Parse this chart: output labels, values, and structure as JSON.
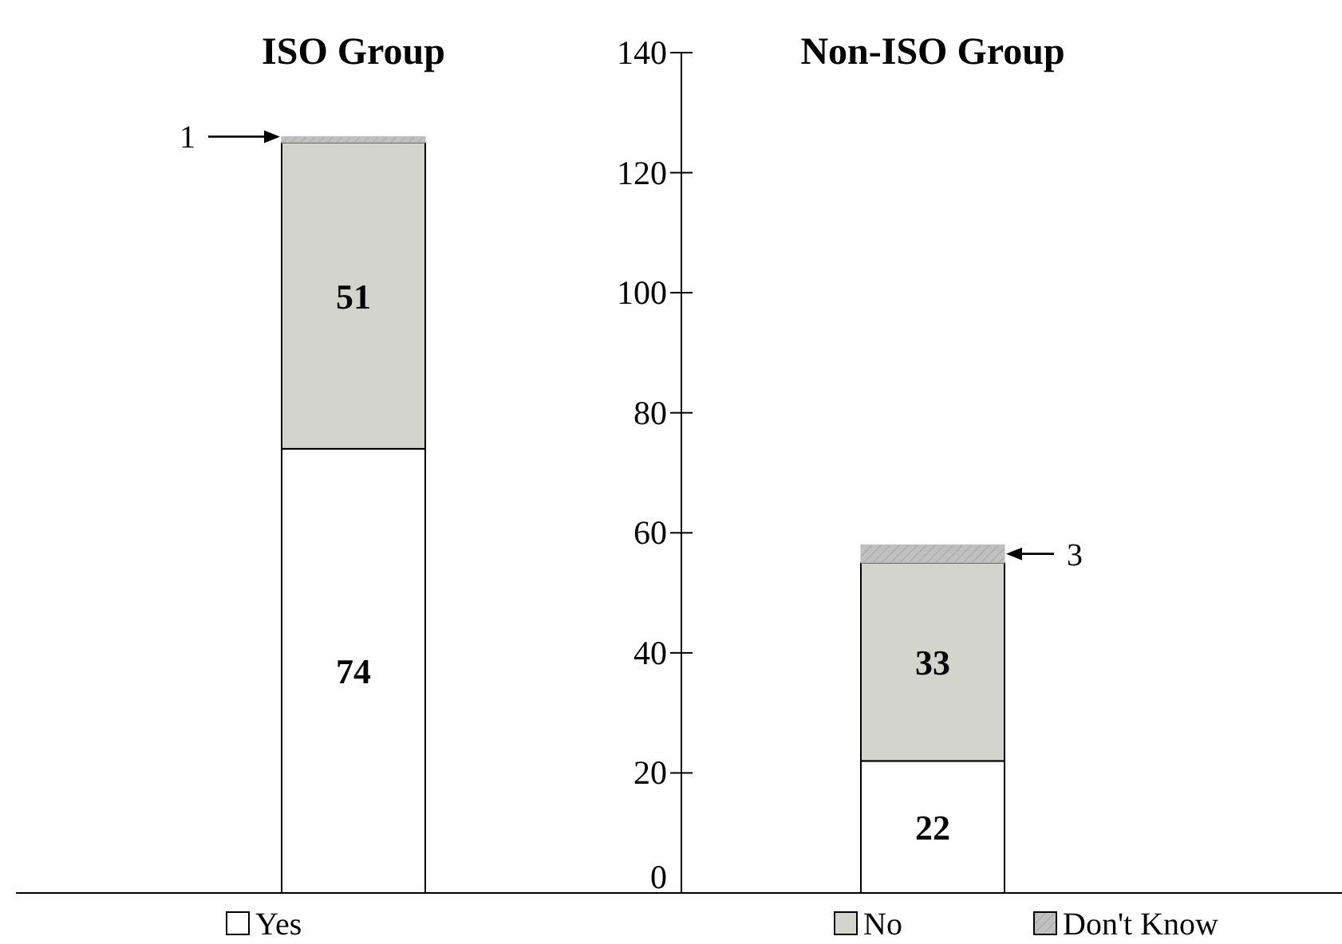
{
  "chart_data": {
    "type": "bar",
    "stacked": true,
    "categories": [
      "ISO Group",
      "Non-ISO Group"
    ],
    "series": [
      {
        "name": "Yes",
        "color": "#ffffff",
        "values": [
          74,
          22
        ],
        "value_labels": [
          "74",
          "22"
        ]
      },
      {
        "name": "No",
        "color": "#d4d4cf",
        "values": [
          51,
          33
        ],
        "value_labels": [
          "51",
          "33"
        ]
      },
      {
        "name": "Don't Know",
        "color": "#c0c0c0",
        "values": [
          1,
          3
        ]
      }
    ],
    "annotations": [
      "1",
      "3"
    ],
    "ylim": [
      0,
      140
    ],
    "yticks": [
      0,
      20,
      40,
      60,
      80,
      100,
      120,
      140
    ],
    "grid": false,
    "legend": "bottom"
  }
}
